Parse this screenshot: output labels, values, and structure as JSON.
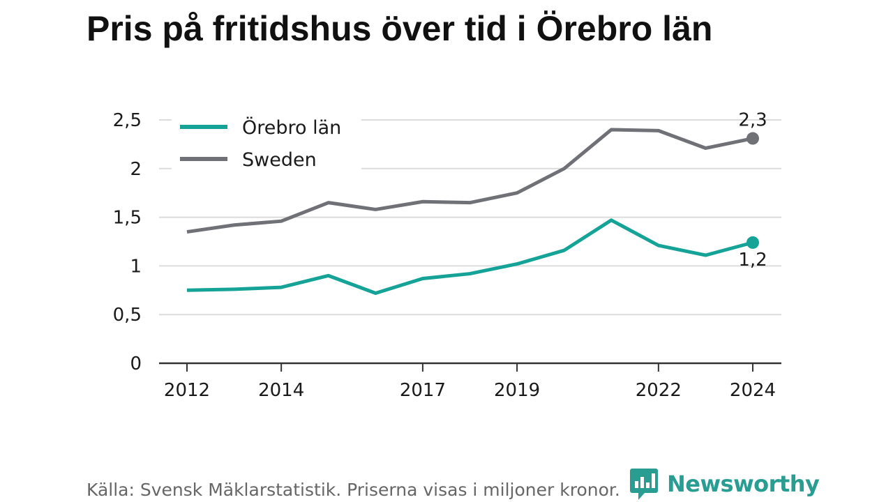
{
  "title": "Pris på fritidshus över tid i Örebro län",
  "source": "Källa: Svensk Mäklarstatistik. Priserna visas i miljoner kronor.",
  "brand": {
    "name": "Newsworthy",
    "icon": "newsworthy-logo-icon",
    "color": "#2a9d93"
  },
  "chart_data": {
    "type": "line",
    "x": [
      2012,
      2013,
      2014,
      2015,
      2016,
      2017,
      2018,
      2019,
      2020,
      2021,
      2022,
      2023,
      2024
    ],
    "x_tick_labels": [
      "2012",
      "2014",
      "2017",
      "2019",
      "2022",
      "2024"
    ],
    "x_tick_values": [
      2012,
      2014,
      2017,
      2019,
      2022,
      2024
    ],
    "y_ticks": [
      0,
      0.5,
      1,
      1.5,
      2,
      2.5
    ],
    "y_tick_labels": [
      "0",
      "0,5",
      "1",
      "1,5",
      "2",
      "2,5"
    ],
    "ylim": [
      0,
      2.5
    ],
    "grid": true,
    "legend_position": "top-left",
    "series": [
      {
        "name": "Örebro län",
        "color": "#16a397",
        "values": [
          0.75,
          0.76,
          0.78,
          0.9,
          0.72,
          0.87,
          0.92,
          1.02,
          1.16,
          1.47,
          1.21,
          1.11,
          1.24
        ],
        "end_label": "1,2"
      },
      {
        "name": "Sweden",
        "color": "#707077",
        "values": [
          1.35,
          1.42,
          1.46,
          1.65,
          1.58,
          1.66,
          1.65,
          1.75,
          2.0,
          2.4,
          2.39,
          2.21,
          2.31
        ],
        "end_label": "2,3"
      }
    ]
  }
}
